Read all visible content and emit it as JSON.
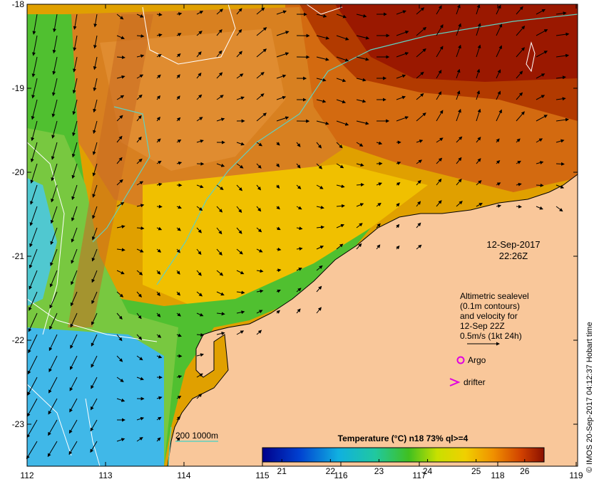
{
  "map": {
    "lat_ticks": [
      "-18",
      "-19",
      "-20",
      "-21",
      "-22",
      "-23"
    ],
    "lon_ticks": [
      "112",
      "113",
      "114",
      "115",
      "116",
      "117",
      "118",
      "119"
    ]
  },
  "annotation": {
    "date": "12-Sep-2017",
    "time": "22:26Z",
    "legend_lines": [
      "Altimetric sealevel",
      "(0.1m contours)",
      "and velocity for",
      "12-Sep 22Z",
      "0.5m/s (1kt 24h)"
    ],
    "argo_label": "Argo",
    "drifter_label": "drifter",
    "depth_label": "200  1000m",
    "credit": "© IMOS 20-Sep-2017 04:12:37 Hobart time"
  },
  "colorbar": {
    "title": "Temperature (°C) n18 73% ql>=4",
    "ticks": [
      "21",
      "22",
      "23",
      "24",
      "25",
      "26"
    ],
    "range": [
      20.6,
      26.4
    ]
  },
  "colors": {
    "land": "#f9c79a",
    "warm": "#9a1800",
    "mid_warm": "#e07a10",
    "yellow": "#f0c000",
    "green": "#50c030",
    "cyan": "#40b8e8",
    "isobath": "#60d0c0",
    "argo": "#e000e0",
    "drifter": "#e000e0"
  }
}
